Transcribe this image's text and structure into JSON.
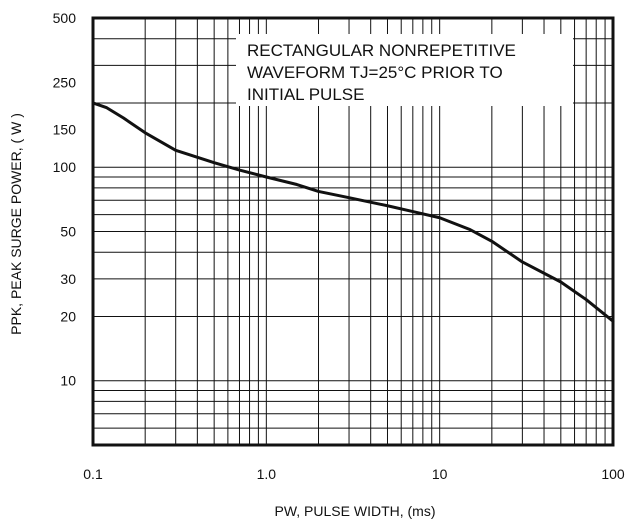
{
  "chart_data": {
    "type": "line",
    "title": "",
    "xlabel": "PW, PULSE WIDTH, (ms)",
    "ylabel": "PPK, PEAK SURGE POWER, ( W )",
    "x_scale": "log",
    "y_scale": "log",
    "xlim": [
      0.1,
      100
    ],
    "ylim": [
      5,
      500
    ],
    "grid": true,
    "x_ticks": [
      {
        "value": 0.1,
        "label": "0.1"
      },
      {
        "value": 1,
        "label": "1.0"
      },
      {
        "value": 10,
        "label": "10"
      },
      {
        "value": 100,
        "label": "100"
      }
    ],
    "y_ticks": [
      {
        "value": 10,
        "label": "10"
      },
      {
        "value": 20,
        "label": "20"
      },
      {
        "value": 30,
        "label": "30"
      },
      {
        "value": 50,
        "label": "50"
      },
      {
        "value": 100,
        "label": "100"
      },
      {
        "value": 150,
        "label": "150"
      },
      {
        "value": 250,
        "label": "250"
      },
      {
        "value": 500,
        "label": "500"
      }
    ],
    "annotation": {
      "lines": [
        "RECTANGULAR NONREPETITIVE",
        "WAVEFORM TJ=25°C PRIOR TO",
        "INITIAL PULSE"
      ]
    },
    "series": [
      {
        "x": [
          0.1,
          0.12,
          0.15,
          0.2,
          0.3,
          0.5,
          0.7,
          1.0,
          1.5,
          2.0,
          3.0,
          5.0,
          7.0,
          10.0,
          15.0,
          20.0,
          30.0,
          50.0,
          70.0,
          100.0
        ],
        "y": [
          200,
          190,
          170,
          145,
          120,
          105,
          97,
          90,
          83,
          77,
          72,
          66,
          62,
          58,
          51,
          45,
          36,
          29,
          24,
          19
        ]
      }
    ]
  },
  "colors": {
    "line": "#111111",
    "grid": "#111111",
    "background": "#ffffff"
  }
}
